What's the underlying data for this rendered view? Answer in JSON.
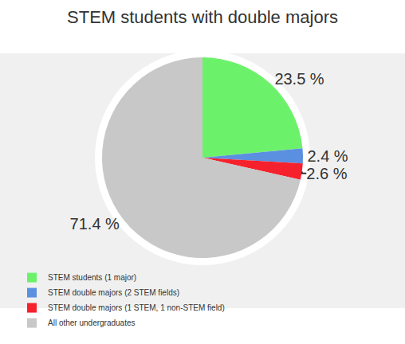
{
  "chart_data": {
    "type": "pie",
    "title": "STEM students with double majors",
    "categories": [
      "STEM students (1 major)",
      "STEM double majors (2 STEM fields)",
      "STEM double majors (1 STEM, 1 non-STEM field)",
      "All other undergraduates"
    ],
    "values": [
      23.5,
      2.4,
      2.6,
      71.4
    ],
    "value_labels": [
      "23.5 %",
      "2.4 %",
      "2.6 %",
      "71.4 %"
    ],
    "colors": [
      "#6cf26a",
      "#5b8fdf",
      "#f5222d",
      "#c8c8c8"
    ],
    "data_labels": true,
    "legend": "bottom"
  }
}
